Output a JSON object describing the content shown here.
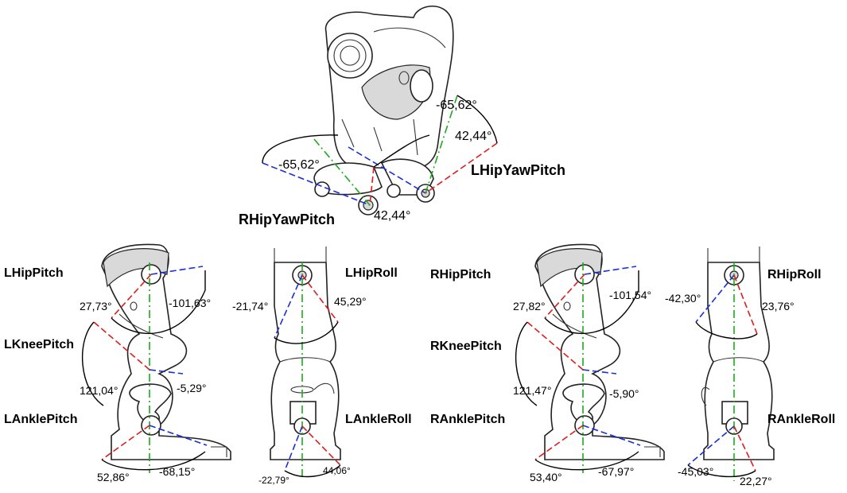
{
  "labels": {
    "lhipyawpitch": "LHipYawPitch",
    "rhipyawpitch": "RHipYawPitch",
    "lhippitch": "LHipPitch",
    "lkneepitch": "LKneePitch",
    "lanklepitch": "LAnklePitch",
    "lhiproll": "LHipRoll",
    "lankleroll": "LAnkleRoll",
    "rhippitch": "RHipPitch",
    "rkneepitch": "RKneePitch",
    "ranklepitch": "RAnklePitch",
    "rhiproll": "RHipRoll",
    "rankleroll": "RAnkleRoll"
  },
  "angles": {
    "top_left_neg": "-65,62°",
    "top_left_pos": "42,44°",
    "top_right_neg": "-65,62°",
    "top_right_pos": "42,44°",
    "lhippitch_pos": "27,73°",
    "lhippitch_neg": "-101,63°",
    "lknee_pos": "121,04°",
    "lknee_neg": "-5,29°",
    "lankle_pos": "52,86°",
    "lankle_neg": "-68,15°",
    "lhiproll_neg": "-21,74°",
    "lhiproll_pos": "45,29°",
    "lankleroll_neg": "-22,79°",
    "lankleroll_pos": "44,06°",
    "rhippitch_pos": "27,82°",
    "rhippitch_neg": "-101,54°",
    "rknee_pos": "121,47°",
    "rknee_neg": "-5,90°",
    "rankle_pos": "53,40°",
    "rankle_neg": "-67,97°",
    "rhiproll_neg": "-42,30°",
    "rhiproll_pos": "23,76°",
    "rankleroll_neg": "-45,03°",
    "rankleroll_pos": "22,27°"
  }
}
